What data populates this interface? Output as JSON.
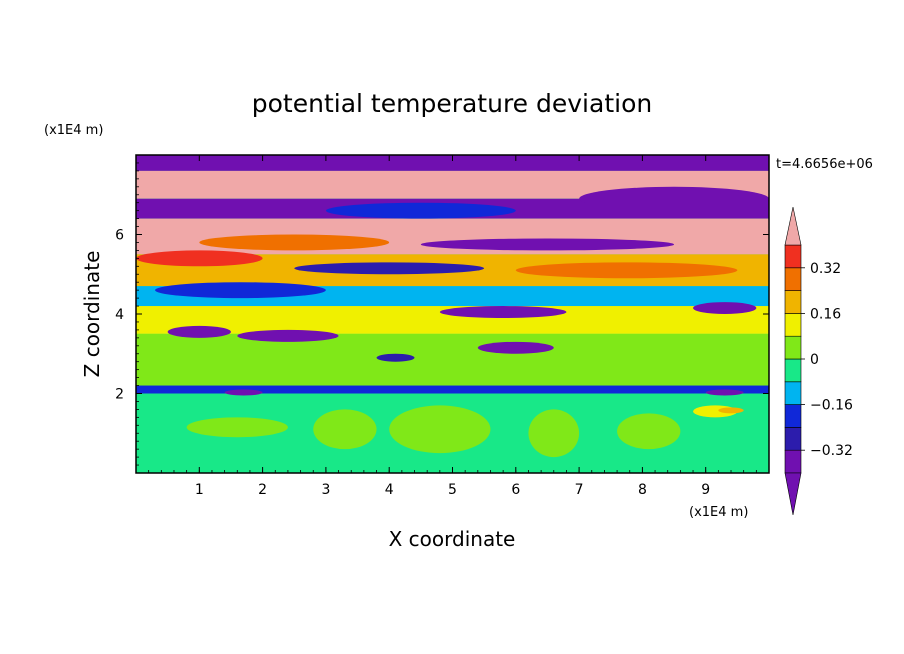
{
  "chart_data": {
    "type": "heatmap",
    "title": "potential temperature deviation",
    "xlabel": "X coordinate",
    "ylabel": "Z coordinate",
    "x_unit": "(x1E4 m)",
    "y_unit": "(x1E4 m)",
    "xlim": [
      0,
      10
    ],
    "ylim": [
      0,
      8
    ],
    "x_ticks": [
      "1",
      "2",
      "3",
      "4",
      "5",
      "6",
      "7",
      "8",
      "9"
    ],
    "y_ticks": [
      "2",
      "4",
      "6"
    ],
    "time_label": "t=4.6656e+06",
    "colorbar": {
      "levels": [
        -0.4,
        -0.32,
        -0.24,
        -0.16,
        -0.08,
        0,
        0.08,
        0.16,
        0.24,
        0.32,
        0.4
      ],
      "labels": [
        "0.32",
        "0.16",
        "0",
        "−0.16",
        "−0.32"
      ],
      "label_values": [
        0.32,
        0.16,
        0,
        -0.16,
        -0.32
      ],
      "colors": [
        "#7010b0",
        "#2c1cac",
        "#1028d8",
        "#00b4f0",
        "#18e888",
        "#80e818",
        "#f0f000",
        "#f0b400",
        "#f07000",
        "#f03020"
      ],
      "under_color": "#7010b0",
      "over_color": "#f0a8a8",
      "extend": "both"
    },
    "bands": [
      {
        "z": [
          7.6,
          8.0
        ],
        "value": -0.45
      },
      {
        "z": [
          6.9,
          7.6
        ],
        "value": 0.45
      },
      {
        "z": [
          6.4,
          6.9
        ],
        "value": -0.45
      },
      {
        "z": [
          5.5,
          6.4
        ],
        "value": 0.45
      },
      {
        "z": [
          4.7,
          5.5
        ],
        "value": 0.2
      },
      {
        "z": [
          4.2,
          4.7
        ],
        "value": -0.12
      },
      {
        "z": [
          3.5,
          4.2
        ],
        "value": 0.08
      },
      {
        "z": [
          2.2,
          3.5
        ],
        "value": 0.02
      },
      {
        "z": [
          2.0,
          2.2
        ],
        "value": -0.2
      },
      {
        "z": [
          0.0,
          2.0
        ],
        "value": -0.03
      }
    ],
    "features": [
      {
        "x": [
          0.0,
          4.5
        ],
        "z": [
          7.75,
          8.0
        ],
        "value": -0.45
      },
      {
        "x": [
          2.5,
          6.5
        ],
        "z": [
          7.0,
          7.4
        ],
        "value": 0.45
      },
      {
        "x": [
          7.0,
          10.0
        ],
        "z": [
          6.6,
          7.2
        ],
        "value": -0.45
      },
      {
        "x": [
          0.5,
          3.5
        ],
        "z": [
          6.5,
          6.8
        ],
        "value": -0.45
      },
      {
        "x": [
          3.0,
          6.0
        ],
        "z": [
          6.4,
          6.8
        ],
        "value": -0.2
      },
      {
        "x": [
          1.0,
          4.0
        ],
        "z": [
          5.6,
          6.0
        ],
        "value": 0.3
      },
      {
        "x": [
          4.5,
          8.5
        ],
        "z": [
          5.6,
          5.9
        ],
        "value": -0.45
      },
      {
        "x": [
          0.0,
          2.0
        ],
        "z": [
          5.2,
          5.6
        ],
        "value": 0.35
      },
      {
        "x": [
          2.5,
          5.5
        ],
        "z": [
          5.0,
          5.3
        ],
        "value": -0.3
      },
      {
        "x": [
          6.0,
          9.5
        ],
        "z": [
          4.9,
          5.3
        ],
        "value": 0.28
      },
      {
        "x": [
          0.3,
          3.0
        ],
        "z": [
          4.4,
          4.8
        ],
        "value": -0.2
      },
      {
        "x": [
          4.8,
          6.8
        ],
        "z": [
          3.9,
          4.2
        ],
        "value": -0.45
      },
      {
        "x": [
          8.8,
          9.8
        ],
        "z": [
          4.0,
          4.3
        ],
        "value": -0.35
      },
      {
        "x": [
          0.5,
          1.5
        ],
        "z": [
          3.4,
          3.7
        ],
        "value": -0.45
      },
      {
        "x": [
          1.6,
          3.2
        ],
        "z": [
          3.3,
          3.6
        ],
        "value": -0.45
      },
      {
        "x": [
          5.4,
          6.6
        ],
        "z": [
          3.0,
          3.3
        ],
        "value": -0.4
      },
      {
        "x": [
          3.8,
          4.4
        ],
        "z": [
          2.8,
          3.0
        ],
        "value": -0.3
      },
      {
        "x": [
          1.4,
          2.0
        ],
        "z": [
          1.95,
          2.1
        ],
        "value": -0.35
      },
      {
        "x": [
          9.0,
          9.6
        ],
        "z": [
          1.95,
          2.1
        ],
        "value": -0.35
      },
      {
        "x": [
          0.8,
          2.4
        ],
        "z": [
          0.9,
          1.4
        ],
        "value": 0.05
      },
      {
        "x": [
          2.8,
          3.8
        ],
        "z": [
          0.6,
          1.6
        ],
        "value": 0.05
      },
      {
        "x": [
          4.0,
          5.6
        ],
        "z": [
          0.5,
          1.7
        ],
        "value": 0.06
      },
      {
        "x": [
          6.2,
          7.0
        ],
        "z": [
          0.4,
          1.6
        ],
        "value": 0.05
      },
      {
        "x": [
          7.6,
          8.6
        ],
        "z": [
          0.6,
          1.5
        ],
        "value": 0.05
      },
      {
        "x": [
          8.8,
          9.5
        ],
        "z": [
          1.4,
          1.7
        ],
        "value": 0.1
      },
      {
        "x": [
          9.2,
          9.6
        ],
        "z": [
          1.5,
          1.65
        ],
        "value": 0.2
      }
    ]
  }
}
